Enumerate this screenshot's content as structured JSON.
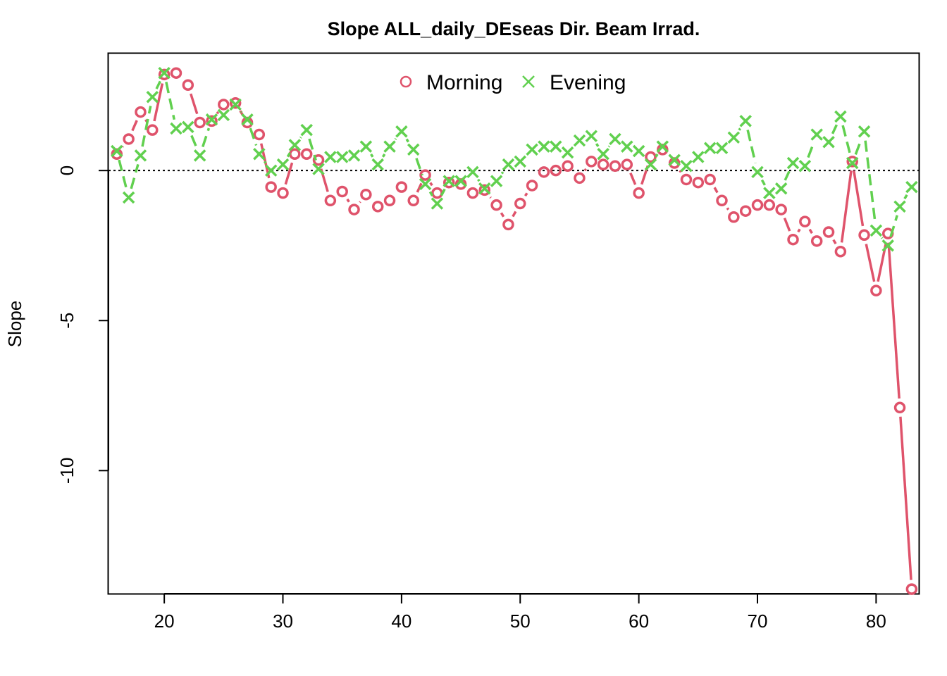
{
  "chart_data": {
    "type": "line",
    "title": "Slope ALL_daily_DEseas Dir. Beam Irrad.",
    "xlabel": "",
    "ylabel": "Slope",
    "xlim": [
      15.3,
      83.6
    ],
    "ylim": [
      -14.1,
      3.9
    ],
    "xticks": [
      20,
      30,
      40,
      50,
      60,
      70,
      80
    ],
    "yticks": [
      0,
      -5,
      -10
    ],
    "reference_line_y": 0,
    "legend_position": "top",
    "grid": false,
    "x": [
      16,
      17,
      18,
      19,
      20,
      21,
      22,
      23,
      24,
      25,
      26,
      27,
      28,
      29,
      30,
      31,
      32,
      33,
      34,
      35,
      36,
      37,
      38,
      39,
      40,
      41,
      42,
      43,
      44,
      45,
      46,
      47,
      48,
      49,
      50,
      51,
      52,
      53,
      54,
      55,
      56,
      57,
      58,
      59,
      60,
      61,
      62,
      63,
      64,
      65,
      66,
      67,
      68,
      69,
      70,
      71,
      72,
      73,
      74,
      75,
      76,
      77,
      78,
      79,
      80,
      81,
      82,
      83
    ],
    "series": [
      {
        "name": "Morning",
        "color": "#DF536B",
        "marker": "circle",
        "line_style": "solid",
        "values": [
          0.55,
          1.05,
          1.95,
          1.35,
          3.2,
          3.25,
          2.85,
          1.6,
          1.65,
          2.2,
          2.25,
          1.6,
          1.2,
          -0.55,
          -0.75,
          0.55,
          0.55,
          0.35,
          -1.0,
          -0.7,
          -1.3,
          -0.8,
          -1.2,
          -1.0,
          -0.55,
          -1.0,
          -0.15,
          -0.75,
          -0.4,
          -0.45,
          -0.75,
          -0.65,
          -1.15,
          -1.8,
          -1.1,
          -0.5,
          -0.05,
          0.0,
          0.15,
          -0.25,
          0.3,
          0.2,
          0.15,
          0.2,
          -0.75,
          0.45,
          0.7,
          0.25,
          -0.3,
          -0.4,
          -0.3,
          -1.0,
          -1.55,
          -1.35,
          -1.15,
          -1.15,
          -1.3,
          -2.3,
          -1.7,
          -2.35,
          -2.05,
          -2.7,
          0.3,
          -2.15,
          -4.0,
          -2.1,
          -7.9,
          -13.95
        ]
      },
      {
        "name": "Evening",
        "color": "#61D04F",
        "marker": "cross",
        "line_style": "dashed",
        "values": [
          0.65,
          -0.9,
          0.5,
          2.45,
          3.25,
          1.4,
          1.45,
          0.5,
          1.7,
          1.85,
          2.2,
          1.7,
          0.55,
          0.0,
          0.2,
          0.85,
          1.35,
          0.05,
          0.45,
          0.45,
          0.5,
          0.8,
          0.2,
          0.8,
          1.3,
          0.7,
          -0.45,
          -1.1,
          -0.35,
          -0.35,
          -0.05,
          -0.6,
          -0.35,
          0.2,
          0.3,
          0.7,
          0.8,
          0.8,
          0.6,
          1.0,
          1.15,
          0.55,
          1.05,
          0.8,
          0.65,
          0.2,
          0.8,
          0.35,
          0.15,
          0.45,
          0.75,
          0.75,
          1.1,
          1.65,
          -0.05,
          -0.75,
          -0.6,
          0.25,
          0.15,
          1.2,
          0.95,
          1.8,
          0.25,
          1.3,
          -2.0,
          -2.5,
          -1.2,
          -0.55
        ]
      }
    ]
  }
}
